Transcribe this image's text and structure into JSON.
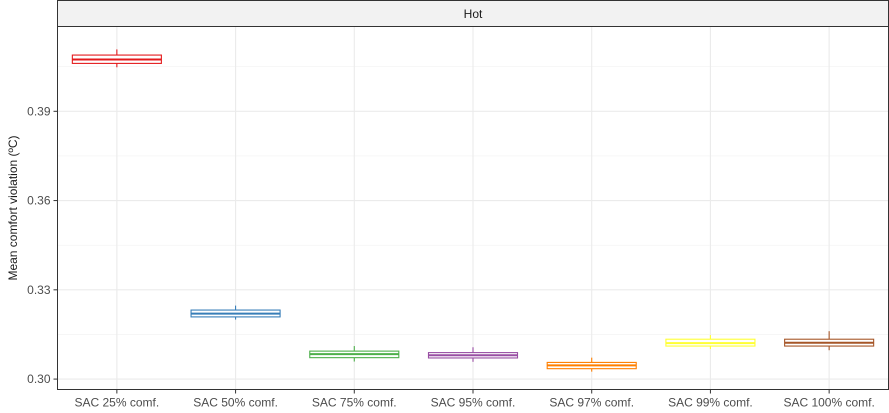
{
  "chart_data": {
    "type": "boxplot",
    "panel_title": "Hot",
    "xlabel": "",
    "ylabel": "Mean comfort violation (ºC)",
    "ylim": [
      0.2965,
      0.4185
    ],
    "yticks": [
      0.3,
      0.33,
      0.36,
      0.39
    ],
    "ytick_labels": [
      "0.30",
      "0.33",
      "0.36",
      "0.39"
    ],
    "grid": true,
    "legend": "none",
    "categories": [
      "SAC 25% comf.",
      "SAC 50% comf.",
      "SAC 75% comf.",
      "SAC 95% comf.",
      "SAC 97% comf.",
      "SAC 99% comf.",
      "SAC 100% comf."
    ],
    "colors": [
      "#E41A1C",
      "#377EB8",
      "#4DAF4A",
      "#984EA3",
      "#FF7F00",
      "#FFFF33",
      "#A65628"
    ],
    "boxes": [
      {
        "min": 0.4048,
        "q1": 0.4061,
        "median": 0.4074,
        "q3": 0.4089,
        "max": 0.4108
      },
      {
        "min": 0.32,
        "q1": 0.3209,
        "median": 0.322,
        "q3": 0.3232,
        "max": 0.3247
      },
      {
        "min": 0.3059,
        "q1": 0.3072,
        "median": 0.3084,
        "q3": 0.3094,
        "max": 0.3111
      },
      {
        "min": 0.3058,
        "q1": 0.3071,
        "median": 0.308,
        "q3": 0.3089,
        "max": 0.3107
      },
      {
        "min": 0.3025,
        "q1": 0.3035,
        "median": 0.3046,
        "q3": 0.3056,
        "max": 0.3072
      },
      {
        "min": 0.3101,
        "q1": 0.3111,
        "median": 0.3121,
        "q3": 0.3134,
        "max": 0.3148
      },
      {
        "min": 0.3097,
        "q1": 0.3111,
        "median": 0.3122,
        "q3": 0.3134,
        "max": 0.3161
      }
    ]
  }
}
